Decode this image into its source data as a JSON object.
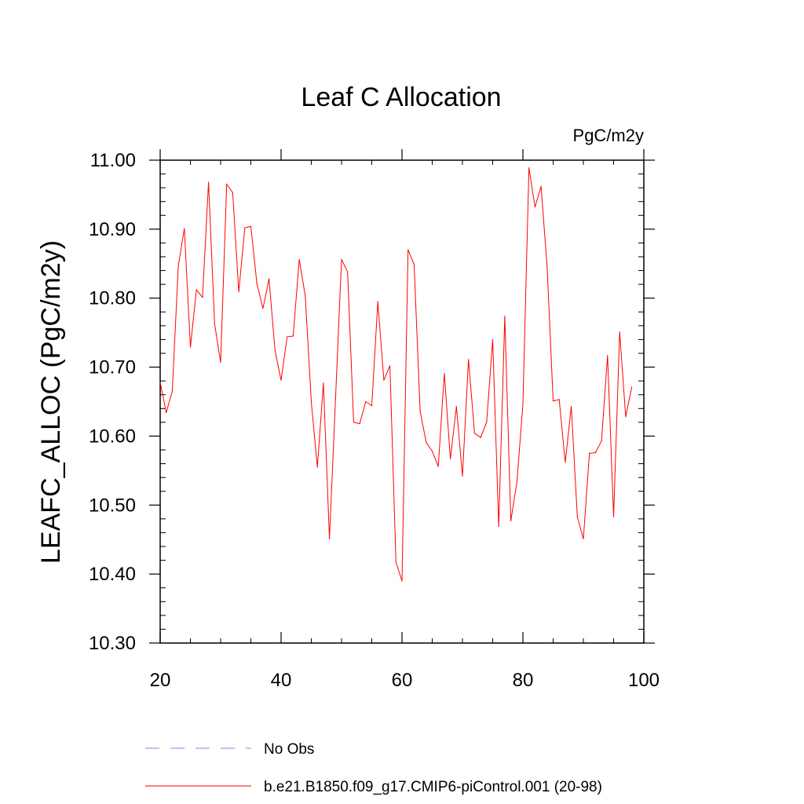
{
  "chart_data": {
    "type": "line",
    "title": "Leaf C Allocation",
    "units_label": "PgC/m2y",
    "ylabel": "LEAFC_ALLOC  (PgC/m2y)",
    "xlabel": "",
    "xlim": [
      20,
      100
    ],
    "ylim": [
      10.3,
      11.0
    ],
    "x_ticks": [
      20,
      40,
      60,
      80,
      100
    ],
    "x_tick_labels": [
      "20",
      "40",
      "60",
      "80",
      "100"
    ],
    "y_ticks": [
      10.3,
      10.4,
      10.5,
      10.6,
      10.7,
      10.8,
      10.9,
      11.0
    ],
    "y_tick_labels": [
      "10.30",
      "10.40",
      "10.50",
      "10.60",
      "10.70",
      "10.80",
      "10.90",
      "11.00"
    ],
    "grid": false,
    "legend_position": "bottom",
    "legend": [
      {
        "label": "No Obs",
        "color": "#8080ff",
        "style": "dashed"
      },
      {
        "label": "b.e21.B1850.f09_g17.CMIP6-piControl.001 (20-98)",
        "color": "#ff0000",
        "style": "solid"
      }
    ],
    "series": [
      {
        "name": "b.e21.B1850.f09_g17.CMIP6-piControl.001 (20-98)",
        "color": "#ff0000",
        "x": [
          20,
          21,
          22,
          23,
          24,
          25,
          26,
          27,
          28,
          29,
          30,
          31,
          32,
          33,
          34,
          35,
          36,
          37,
          38,
          39,
          40,
          41,
          42,
          43,
          44,
          45,
          46,
          47,
          48,
          49,
          50,
          51,
          52,
          53,
          54,
          55,
          56,
          57,
          58,
          59,
          60,
          61,
          62,
          63,
          64,
          65,
          66,
          67,
          68,
          69,
          70,
          71,
          72,
          73,
          74,
          75,
          76,
          77,
          78,
          79,
          80,
          81,
          82,
          83,
          84,
          85,
          86,
          87,
          88,
          89,
          90,
          91,
          92,
          93,
          94,
          95,
          96,
          97,
          98
        ],
        "values": [
          10.678,
          10.634,
          10.665,
          10.847,
          10.901,
          10.729,
          10.812,
          10.801,
          10.968,
          10.763,
          10.707,
          10.965,
          10.953,
          10.809,
          10.902,
          10.904,
          10.821,
          10.785,
          10.828,
          10.724,
          10.681,
          10.744,
          10.745,
          10.856,
          10.803,
          10.649,
          10.555,
          10.677,
          10.451,
          10.653,
          10.856,
          10.838,
          10.62,
          10.618,
          10.65,
          10.644,
          10.795,
          10.681,
          10.702,
          10.417,
          10.39,
          10.87,
          10.849,
          10.636,
          10.591,
          10.578,
          10.556,
          10.691,
          10.567,
          10.643,
          10.542,
          10.711,
          10.604,
          10.598,
          10.62,
          10.74,
          10.469,
          10.774,
          10.477,
          10.533,
          10.646,
          10.989,
          10.932,
          10.962,
          10.846,
          10.651,
          10.653,
          10.562,
          10.643,
          10.483,
          10.451,
          10.575,
          10.576,
          10.593,
          10.717,
          10.483,
          10.751,
          10.628,
          10.671
        ]
      }
    ]
  }
}
